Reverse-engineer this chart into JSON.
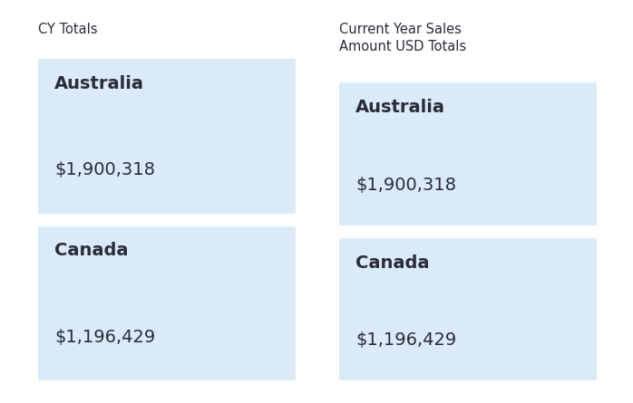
{
  "background_color": "#ffffff",
  "outer_bg": "#e8e8e8",
  "card_bg": "#daeaf7",
  "text_color": "#2b2b3b",
  "left_panel": {
    "title": "CY Totals",
    "cards": [
      {
        "country": "Australia",
        "value": "$1,900,318"
      },
      {
        "country": "Canada",
        "value": "$1,196,429"
      }
    ]
  },
  "right_panel": {
    "title": "Current Year Sales\nAmount USD Totals",
    "cards": [
      {
        "country": "Australia",
        "value": "$1,900,318"
      },
      {
        "country": "Canada",
        "value": "$1,196,429"
      }
    ]
  },
  "figsize": [
    6.98,
    4.45
  ],
  "dpi": 100,
  "title_fontsize": 10.5,
  "country_fontsize": 14,
  "value_fontsize": 14
}
